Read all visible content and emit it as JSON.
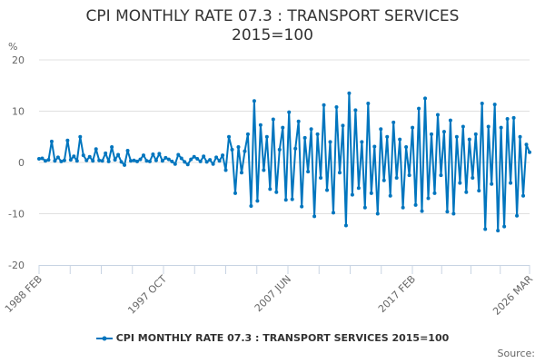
{
  "chart_data": {
    "type": "line",
    "title_line1": "CPI MONTHLY RATE 07.3 : TRANSPORT SERVICES",
    "title_line2": "2015=100",
    "ylabel": "%",
    "ylim": [
      -20,
      20
    ],
    "yticks": [
      "20",
      "10",
      "0",
      "-10",
      "-20"
    ],
    "ytick_values": [
      20,
      10,
      0,
      -10,
      -20
    ],
    "xtick_labels": [
      "1988 FEB",
      "1997 OCT",
      "2007 JUN",
      "2017 FEB",
      "2026 MAR"
    ],
    "x_start": "1988 FEB",
    "x_end": "2026 MAR",
    "sampling_note": "approximate series, sampled roughly quarterly",
    "grid": true,
    "legend_position": "bottom",
    "series": [
      {
        "name": "CPI MONTHLY RATE 07.3 : TRANSPORT SERVICES 2015=100",
        "color": "#0075be",
        "values": [
          0.7,
          0.8,
          0.3,
          0.5,
          4.1,
          0.3,
          1.0,
          0.2,
          0.4,
          4.3,
          0.5,
          1.2,
          0.3,
          5.0,
          1.4,
          0.4,
          1.1,
          0.3,
          2.6,
          0.4,
          0.3,
          1.8,
          0.2,
          3.0,
          0.5,
          1.5,
          0.1,
          -0.5,
          2.3,
          0.3,
          0.4,
          0.2,
          0.6,
          1.4,
          0.3,
          0.2,
          1.6,
          0.4,
          1.7,
          0.3,
          0.9,
          0.6,
          0.2,
          -0.3,
          1.5,
          0.8,
          0.1,
          -0.4,
          0.6,
          1.1,
          0.7,
          0.2,
          1.2,
          0.1,
          0.5,
          -0.3,
          1.0,
          0.3,
          1.4,
          -1.5,
          5.0,
          2.5,
          -6.0,
          3.0,
          -2.0,
          2.2,
          5.5,
          -8.5,
          12.0,
          -7.5,
          7.3,
          -1.5,
          5.0,
          -5.2,
          8.4,
          -5.8,
          2.5,
          6.8,
          -7.3,
          9.8,
          -7.2,
          2.7,
          8.0,
          -8.6,
          4.8,
          -1.8,
          6.5,
          -10.5,
          5.5,
          -3.0,
          11.2,
          -5.4,
          4.0,
          -9.8,
          10.8,
          -2.0,
          7.2,
          -12.3,
          13.5,
          -6.3,
          10.2,
          -5.0,
          4.0,
          -8.8,
          11.5,
          -6.0,
          3.1,
          -10.0,
          6.5,
          -3.5,
          5.0,
          -6.5,
          7.8,
          -3.0,
          4.5,
          -8.8,
          3.0,
          -2.5,
          6.8,
          -8.3,
          10.5,
          -9.5,
          12.5,
          -7.0,
          5.5,
          -6.0,
          9.3,
          -2.5,
          6.0,
          -9.6,
          8.2,
          -10.0,
          5.0,
          -4.0,
          7.0,
          -5.8,
          4.5,
          -3.0,
          5.5,
          -5.5,
          11.5,
          -13.0,
          7.0,
          -4.2,
          11.3,
          -13.3,
          6.8,
          -12.5,
          8.5,
          -4.0,
          8.7,
          -10.4,
          5.0,
          -6.5,
          3.5,
          2.0
        ]
      }
    ],
    "source_label": "Source:"
  }
}
